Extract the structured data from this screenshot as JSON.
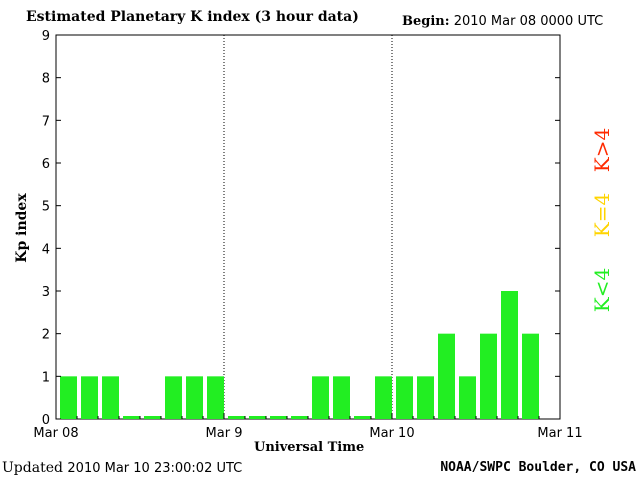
{
  "header": {
    "title": "Estimated Planetary K index (3 hour data)",
    "begin_label": "Begin:",
    "begin_value": "2010 Mar 08 0000 UTC"
  },
  "footer": {
    "updated_label": "Updated",
    "updated_value": "2010 Mar 10 23:00:02 UTC",
    "credit": "NOAA/SWPC Boulder, CO USA"
  },
  "legend": {
    "high": {
      "text": "K>4",
      "color": "#ff2a00"
    },
    "equal": {
      "text": "K=4",
      "color": "#ffd400"
    },
    "low": {
      "text": "K<4",
      "color": "#22ee22"
    }
  },
  "chart_data": {
    "type": "bar",
    "title": "Estimated Planetary K index (3 hour data)",
    "xlabel": "Universal Time",
    "ylabel": "Kp index",
    "ylim": [
      0,
      9
    ],
    "yticks": [
      0,
      1,
      2,
      3,
      4,
      5,
      6,
      7,
      8,
      9
    ],
    "xtick_labels": [
      "Mar 08",
      "Mar 9",
      "Mar 10",
      "Mar 11"
    ],
    "day_dividers": [
      "Mar 9",
      "Mar 10"
    ],
    "bar_color": "#22ee22",
    "series": [
      {
        "values": [
          1,
          1,
          1,
          0,
          0,
          1,
          1,
          1,
          0,
          0,
          0,
          0,
          1,
          1,
          0,
          1,
          1,
          1,
          2,
          1,
          2,
          3,
          2
        ]
      }
    ]
  }
}
